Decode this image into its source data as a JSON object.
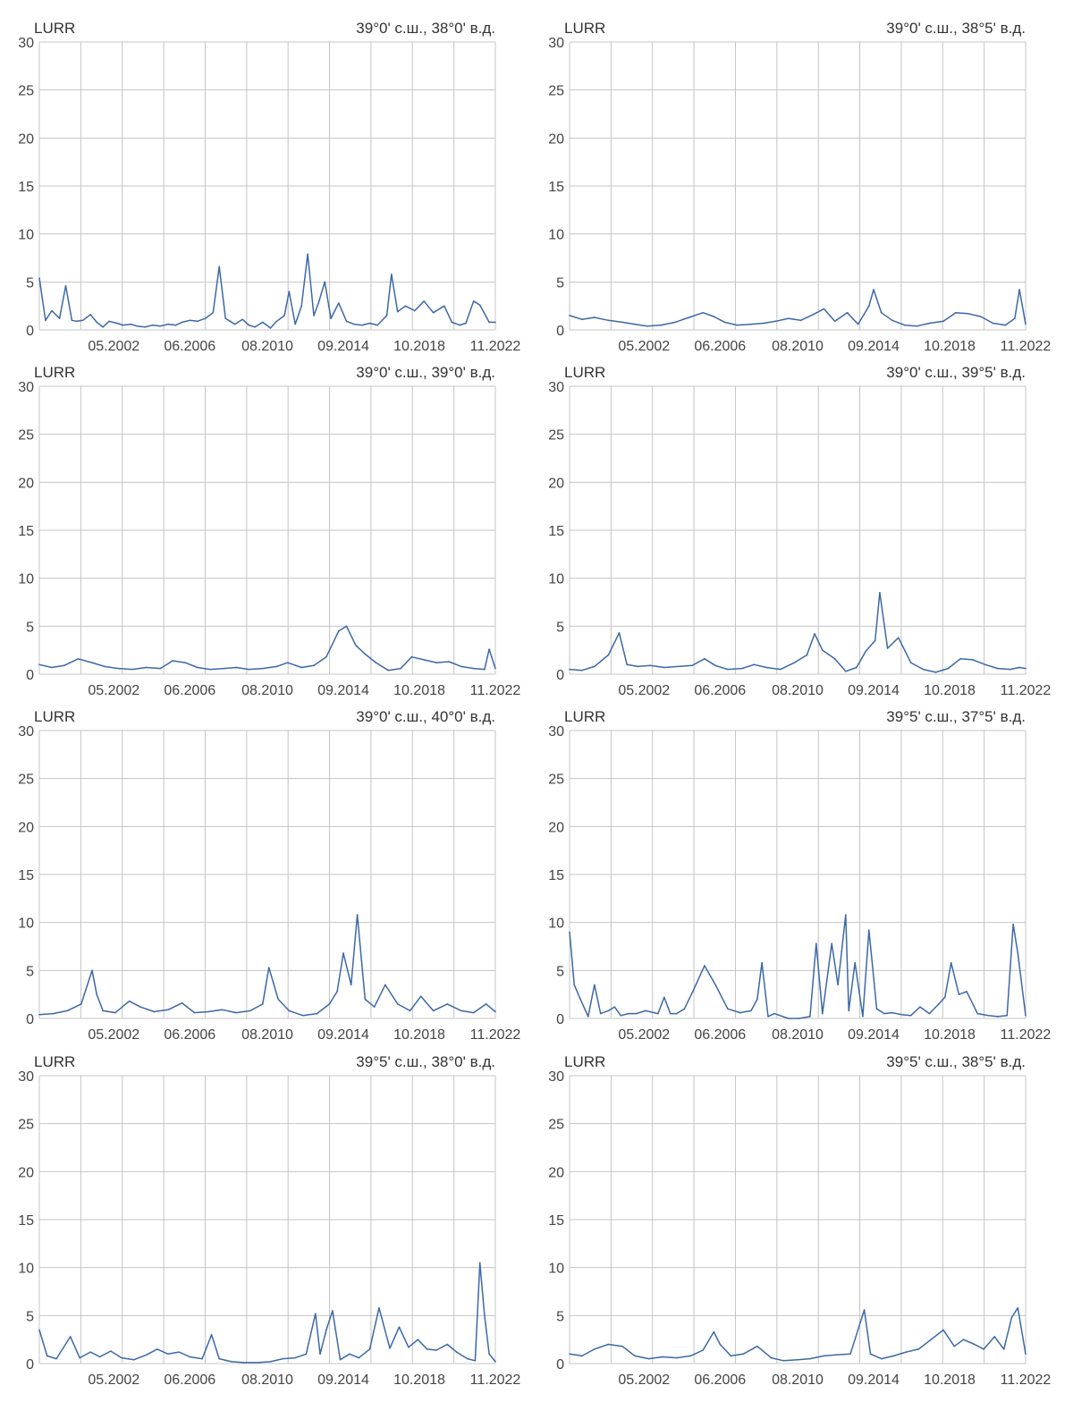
{
  "ylim": [
    0,
    30
  ],
  "yticks": [
    0,
    5,
    10,
    15,
    20,
    25,
    30
  ],
  "xlim": [
    "1998-05",
    "2022-11"
  ],
  "xtick_labels": [
    "05.2002",
    "06.2006",
    "08.2010",
    "09.2014",
    "10.2018",
    "11.2022"
  ],
  "xtick_positions": [
    "2002-05",
    "2006-06",
    "2010-08",
    "2014-09",
    "2018-10",
    "2022-11"
  ],
  "line_color": "#3c68a6",
  "chart_data": [
    {
      "type": "line",
      "title": "LURR",
      "location": "39°0' с.ш., 38°0' в.д.",
      "x": [
        "1998-05",
        "1998-09",
        "1999-01",
        "1999-06",
        "1999-10",
        "2000-02",
        "2000-05",
        "2000-09",
        "2001-02",
        "2001-06",
        "2001-10",
        "2002-02",
        "2002-07",
        "2002-11",
        "2003-04",
        "2003-08",
        "2004-01",
        "2004-06",
        "2004-11",
        "2005-04",
        "2005-09",
        "2006-01",
        "2006-06",
        "2006-11",
        "2007-04",
        "2007-09",
        "2008-01",
        "2008-05",
        "2008-08",
        "2008-11",
        "2009-04",
        "2009-08",
        "2009-12",
        "2010-05",
        "2010-10",
        "2011-02",
        "2011-07",
        "2011-10",
        "2012-02",
        "2012-06",
        "2012-10",
        "2013-02",
        "2013-05",
        "2013-09",
        "2014-01",
        "2014-06",
        "2014-11",
        "2015-04",
        "2015-09",
        "2016-02",
        "2016-07",
        "2017-01",
        "2017-04",
        "2017-08",
        "2018-01",
        "2018-07",
        "2019-01",
        "2019-07",
        "2020-02",
        "2020-07",
        "2020-12",
        "2021-04",
        "2021-09",
        "2022-01",
        "2022-07",
        "2022-11"
      ],
      "values": [
        5.4,
        1.0,
        2.0,
        1.2,
        4.6,
        1.0,
        0.9,
        1.0,
        1.6,
        0.8,
        0.3,
        0.9,
        0.7,
        0.5,
        0.6,
        0.4,
        0.3,
        0.5,
        0.4,
        0.6,
        0.5,
        0.8,
        1.0,
        0.9,
        1.2,
        1.8,
        6.6,
        1.2,
        0.9,
        0.6,
        1.1,
        0.5,
        0.3,
        0.8,
        0.2,
        0.9,
        1.5,
        4.0,
        0.6,
        2.5,
        7.9,
        1.5,
        2.8,
        5.0,
        1.2,
        2.8,
        0.9,
        0.6,
        0.5,
        0.7,
        0.5,
        1.5,
        5.8,
        1.9,
        2.5,
        2.0,
        3.0,
        1.8,
        2.5,
        0.8,
        0.5,
        0.7,
        3.0,
        2.6,
        0.8,
        0.8
      ]
    },
    {
      "type": "line",
      "title": "LURR",
      "location": "39°0' с.ш., 38°5' в.д.",
      "x": [
        "1998-05",
        "1999-01",
        "1999-09",
        "2000-06",
        "2001-03",
        "2001-11",
        "2002-07",
        "2003-04",
        "2004-01",
        "2004-10",
        "2005-07",
        "2006-02",
        "2006-09",
        "2007-05",
        "2008-02",
        "2008-10",
        "2009-06",
        "2010-02",
        "2010-10",
        "2011-06",
        "2012-01",
        "2012-08",
        "2013-04",
        "2013-11",
        "2014-06",
        "2014-09",
        "2015-02",
        "2015-09",
        "2016-05",
        "2017-01",
        "2017-09",
        "2018-06",
        "2019-02",
        "2019-10",
        "2020-06",
        "2021-02",
        "2021-10",
        "2022-04",
        "2022-07",
        "2022-11"
      ],
      "values": [
        1.5,
        1.1,
        1.3,
        1.0,
        0.8,
        0.6,
        0.4,
        0.5,
        0.8,
        1.3,
        1.8,
        1.4,
        0.8,
        0.5,
        0.6,
        0.7,
        0.9,
        1.2,
        1.0,
        1.6,
        2.2,
        0.9,
        1.8,
        0.6,
        2.5,
        4.2,
        1.8,
        1.0,
        0.5,
        0.4,
        0.7,
        0.9,
        1.8,
        1.7,
        1.4,
        0.7,
        0.5,
        1.2,
        4.2,
        0.6
      ]
    },
    {
      "type": "line",
      "title": "LURR",
      "location": "39°0' с.ш., 39°0' в.д.",
      "x": [
        "1998-05",
        "1999-01",
        "1999-09",
        "2000-06",
        "2001-03",
        "2001-11",
        "2002-08",
        "2003-05",
        "2004-02",
        "2004-11",
        "2005-07",
        "2006-03",
        "2006-11",
        "2007-07",
        "2008-04",
        "2008-12",
        "2009-08",
        "2010-05",
        "2011-02",
        "2011-09",
        "2012-06",
        "2013-02",
        "2013-10",
        "2014-06",
        "2014-11",
        "2015-05",
        "2015-11",
        "2016-06",
        "2017-02",
        "2017-10",
        "2018-05",
        "2019-01",
        "2019-09",
        "2020-05",
        "2021-01",
        "2021-09",
        "2022-04",
        "2022-07",
        "2022-11"
      ],
      "values": [
        1.0,
        0.7,
        0.9,
        1.6,
        1.2,
        0.8,
        0.6,
        0.5,
        0.7,
        0.6,
        1.4,
        1.2,
        0.7,
        0.5,
        0.6,
        0.7,
        0.5,
        0.6,
        0.8,
        1.2,
        0.7,
        0.9,
        1.8,
        4.5,
        5.0,
        3.0,
        2.1,
        1.2,
        0.4,
        0.6,
        1.8,
        1.5,
        1.2,
        1.3,
        0.8,
        0.6,
        0.5,
        2.6,
        0.6
      ]
    },
    {
      "type": "line",
      "title": "LURR",
      "location": "39°0' с.ш., 39°5' в.д.",
      "x": [
        "1998-05",
        "1999-01",
        "1999-09",
        "2000-06",
        "2001-01",
        "2001-06",
        "2002-01",
        "2002-09",
        "2003-06",
        "2004-03",
        "2004-12",
        "2005-08",
        "2006-03",
        "2006-11",
        "2007-08",
        "2008-04",
        "2008-12",
        "2009-09",
        "2010-06",
        "2011-02",
        "2011-07",
        "2011-12",
        "2012-08",
        "2013-03",
        "2013-10",
        "2014-04",
        "2014-10",
        "2015-01",
        "2015-06",
        "2016-01",
        "2016-09",
        "2017-05",
        "2018-01",
        "2018-09",
        "2019-05",
        "2020-01",
        "2020-09",
        "2021-05",
        "2022-01",
        "2022-07",
        "2022-11"
      ],
      "values": [
        0.5,
        0.4,
        0.8,
        2.0,
        4.3,
        1.0,
        0.8,
        0.9,
        0.7,
        0.8,
        0.9,
        1.6,
        0.9,
        0.5,
        0.6,
        1.0,
        0.7,
        0.5,
        1.2,
        2.0,
        4.2,
        2.5,
        1.6,
        0.3,
        0.7,
        2.4,
        3.5,
        8.5,
        2.7,
        3.8,
        1.2,
        0.5,
        0.2,
        0.6,
        1.6,
        1.5,
        1.0,
        0.6,
        0.5,
        0.7,
        0.6
      ]
    },
    {
      "type": "line",
      "title": "LURR",
      "location": "39°0' с.ш., 40°0' в.д.",
      "x": [
        "1998-05",
        "1999-02",
        "1999-11",
        "2000-08",
        "2001-03",
        "2001-06",
        "2001-10",
        "2002-06",
        "2003-03",
        "2003-10",
        "2004-07",
        "2005-04",
        "2006-01",
        "2006-09",
        "2007-06",
        "2008-03",
        "2008-12",
        "2009-09",
        "2010-05",
        "2010-09",
        "2011-03",
        "2011-10",
        "2012-07",
        "2013-04",
        "2013-12",
        "2014-05",
        "2014-09",
        "2015-02",
        "2015-06",
        "2015-11",
        "2016-05",
        "2016-12",
        "2017-08",
        "2018-04",
        "2018-11",
        "2019-07",
        "2020-04",
        "2021-01",
        "2021-09",
        "2022-05",
        "2022-11"
      ],
      "values": [
        0.4,
        0.5,
        0.8,
        1.5,
        5.0,
        2.5,
        0.8,
        0.6,
        1.8,
        1.2,
        0.7,
        0.9,
        1.6,
        0.6,
        0.7,
        0.9,
        0.6,
        0.8,
        1.5,
        5.3,
        2.0,
        0.8,
        0.3,
        0.5,
        1.5,
        2.8,
        6.8,
        3.5,
        10.8,
        2.0,
        1.2,
        3.5,
        1.5,
        0.8,
        2.3,
        0.8,
        1.5,
        0.8,
        0.6,
        1.5,
        0.7
      ]
    },
    {
      "type": "line",
      "title": "LURR",
      "location": "39°5' с.ш., 37°5' в.д.",
      "x": [
        "1998-05",
        "1998-08",
        "1998-12",
        "1999-05",
        "1999-09",
        "2000-01",
        "2000-06",
        "2000-10",
        "2001-02",
        "2001-07",
        "2001-12",
        "2002-06",
        "2003-02",
        "2003-06",
        "2003-10",
        "2004-02",
        "2004-07",
        "2005-01",
        "2005-08",
        "2006-03",
        "2006-11",
        "2007-07",
        "2008-02",
        "2008-06",
        "2008-09",
        "2009-01",
        "2009-05",
        "2010-02",
        "2010-09",
        "2011-04",
        "2011-08",
        "2011-12",
        "2012-06",
        "2012-10",
        "2013-03",
        "2013-05",
        "2013-09",
        "2014-02",
        "2014-06",
        "2014-11",
        "2015-04",
        "2015-09",
        "2016-03",
        "2016-09",
        "2017-03",
        "2017-09",
        "2018-03",
        "2018-07",
        "2018-11",
        "2019-04",
        "2019-09",
        "2020-04",
        "2020-11",
        "2021-05",
        "2021-11",
        "2022-03",
        "2022-06",
        "2022-11"
      ],
      "values": [
        9.0,
        3.5,
        2.0,
        0.2,
        3.5,
        0.5,
        0.8,
        1.2,
        0.3,
        0.5,
        0.5,
        0.8,
        0.5,
        2.2,
        0.5,
        0.5,
        1.0,
        3.0,
        5.5,
        3.5,
        1.0,
        0.6,
        0.8,
        2.0,
        5.8,
        0.2,
        0.5,
        0.0,
        0.0,
        0.2,
        7.8,
        0.5,
        7.8,
        3.5,
        10.8,
        0.8,
        5.8,
        0.2,
        9.2,
        1.0,
        0.5,
        0.6,
        0.4,
        0.3,
        1.2,
        0.5,
        1.5,
        2.2,
        5.8,
        2.5,
        2.8,
        0.5,
        0.3,
        0.2,
        0.3,
        9.8,
        6.8,
        0.3
      ]
    },
    {
      "type": "line",
      "title": "LURR",
      "location": "39°5' с.ш., 38°0' в.д.",
      "x": [
        "1998-05",
        "1998-10",
        "1999-04",
        "2000-01",
        "2000-07",
        "2001-02",
        "2001-08",
        "2002-03",
        "2002-10",
        "2003-06",
        "2004-02",
        "2004-09",
        "2005-04",
        "2005-11",
        "2006-06",
        "2007-02",
        "2007-08",
        "2008-01",
        "2008-09",
        "2009-05",
        "2010-02",
        "2010-10",
        "2011-06",
        "2012-02",
        "2012-09",
        "2013-03",
        "2013-06",
        "2013-10",
        "2014-02",
        "2014-07",
        "2015-01",
        "2015-07",
        "2016-02",
        "2016-08",
        "2017-03",
        "2017-09",
        "2018-03",
        "2018-09",
        "2019-03",
        "2019-09",
        "2020-04",
        "2020-10",
        "2021-05",
        "2021-10",
        "2022-01",
        "2022-04",
        "2022-07",
        "2022-11"
      ],
      "values": [
        3.5,
        0.8,
        0.5,
        2.8,
        0.6,
        1.2,
        0.7,
        1.3,
        0.6,
        0.4,
        0.9,
        1.5,
        1.0,
        1.2,
        0.7,
        0.5,
        3.0,
        0.5,
        0.2,
        0.1,
        0.1,
        0.2,
        0.5,
        0.6,
        1.0,
        5.2,
        1.0,
        3.5,
        5.5,
        0.4,
        1.0,
        0.6,
        1.5,
        5.8,
        1.6,
        3.8,
        1.7,
        2.5,
        1.5,
        1.4,
        2.0,
        1.2,
        0.5,
        0.3,
        10.5,
        5.0,
        1.0,
        0.2
      ]
    },
    {
      "type": "line",
      "title": "LURR",
      "location": "39°5' с.ш., 38°5' в.д.",
      "x": [
        "1998-05",
        "1999-01",
        "1999-09",
        "2000-06",
        "2001-03",
        "2001-11",
        "2002-08",
        "2003-05",
        "2004-02",
        "2004-11",
        "2005-07",
        "2006-02",
        "2006-06",
        "2007-01",
        "2007-09",
        "2008-06",
        "2009-03",
        "2009-11",
        "2010-08",
        "2011-04",
        "2012-01",
        "2012-09",
        "2013-06",
        "2014-03",
        "2014-07",
        "2015-02",
        "2015-10",
        "2016-06",
        "2017-02",
        "2017-10",
        "2018-06",
        "2019-01",
        "2019-07",
        "2020-02",
        "2020-08",
        "2021-03",
        "2021-09",
        "2022-02",
        "2022-06",
        "2022-11"
      ],
      "values": [
        1.0,
        0.8,
        1.5,
        2.0,
        1.8,
        0.8,
        0.5,
        0.7,
        0.6,
        0.8,
        1.4,
        3.3,
        2.0,
        0.8,
        1.0,
        1.8,
        0.6,
        0.3,
        0.4,
        0.5,
        0.8,
        0.9,
        1.0,
        5.6,
        1.0,
        0.5,
        0.8,
        1.2,
        1.5,
        2.5,
        3.5,
        1.8,
        2.5,
        2.0,
        1.5,
        2.8,
        1.5,
        4.8,
        5.8,
        1.0
      ]
    }
  ]
}
